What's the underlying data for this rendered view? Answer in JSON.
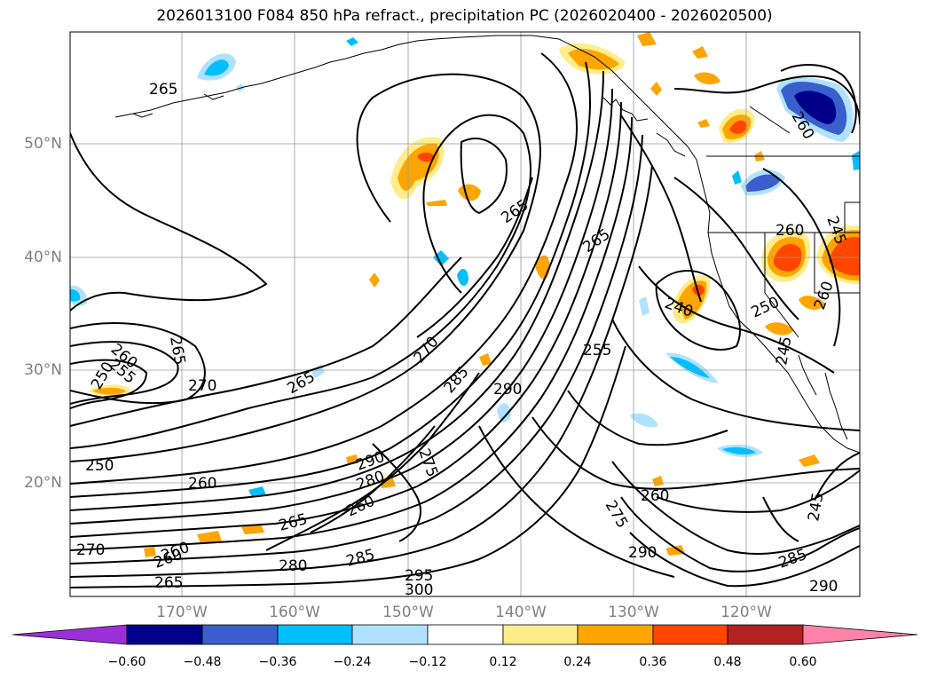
{
  "title": "2026013100 F084 850 hPa refract., precipitation PC (2026020400 - 2026020500)",
  "lat_labels": [
    "50°N",
    "40°N",
    "30°N",
    "20°N"
  ],
  "lon_labels": [
    "170°W",
    "160°W",
    "150°W",
    "140°W",
    "130°W",
    "120°W"
  ],
  "contour_labels": [
    "265",
    "260",
    "255",
    "250",
    "265",
    "270",
    "265",
    "270",
    "285",
    "290",
    "255",
    "265",
    "265",
    "240",
    "250",
    "260",
    "245",
    "260",
    "245",
    "260",
    "250",
    "260",
    "280",
    "290",
    "275",
    "260",
    "265",
    "270",
    "260",
    "280",
    "285",
    "295",
    "300",
    "275",
    "290",
    "260",
    "245",
    "290",
    "260",
    "265",
    "285"
  ],
  "colorbar": {
    "ticks": [
      "−0.60",
      "−0.48",
      "−0.36",
      "−0.24",
      "−0.12",
      "0.12",
      "0.24",
      "0.36",
      "0.48",
      "0.60"
    ],
    "colors": [
      "#9b30d9",
      "#00008b",
      "#3a5fcd",
      "#00bfff",
      "#b0e2ff",
      "#ffffff",
      "#ffec8b",
      "#ffa500",
      "#ff4500",
      "#b22222",
      "#ff82ab"
    ]
  }
}
